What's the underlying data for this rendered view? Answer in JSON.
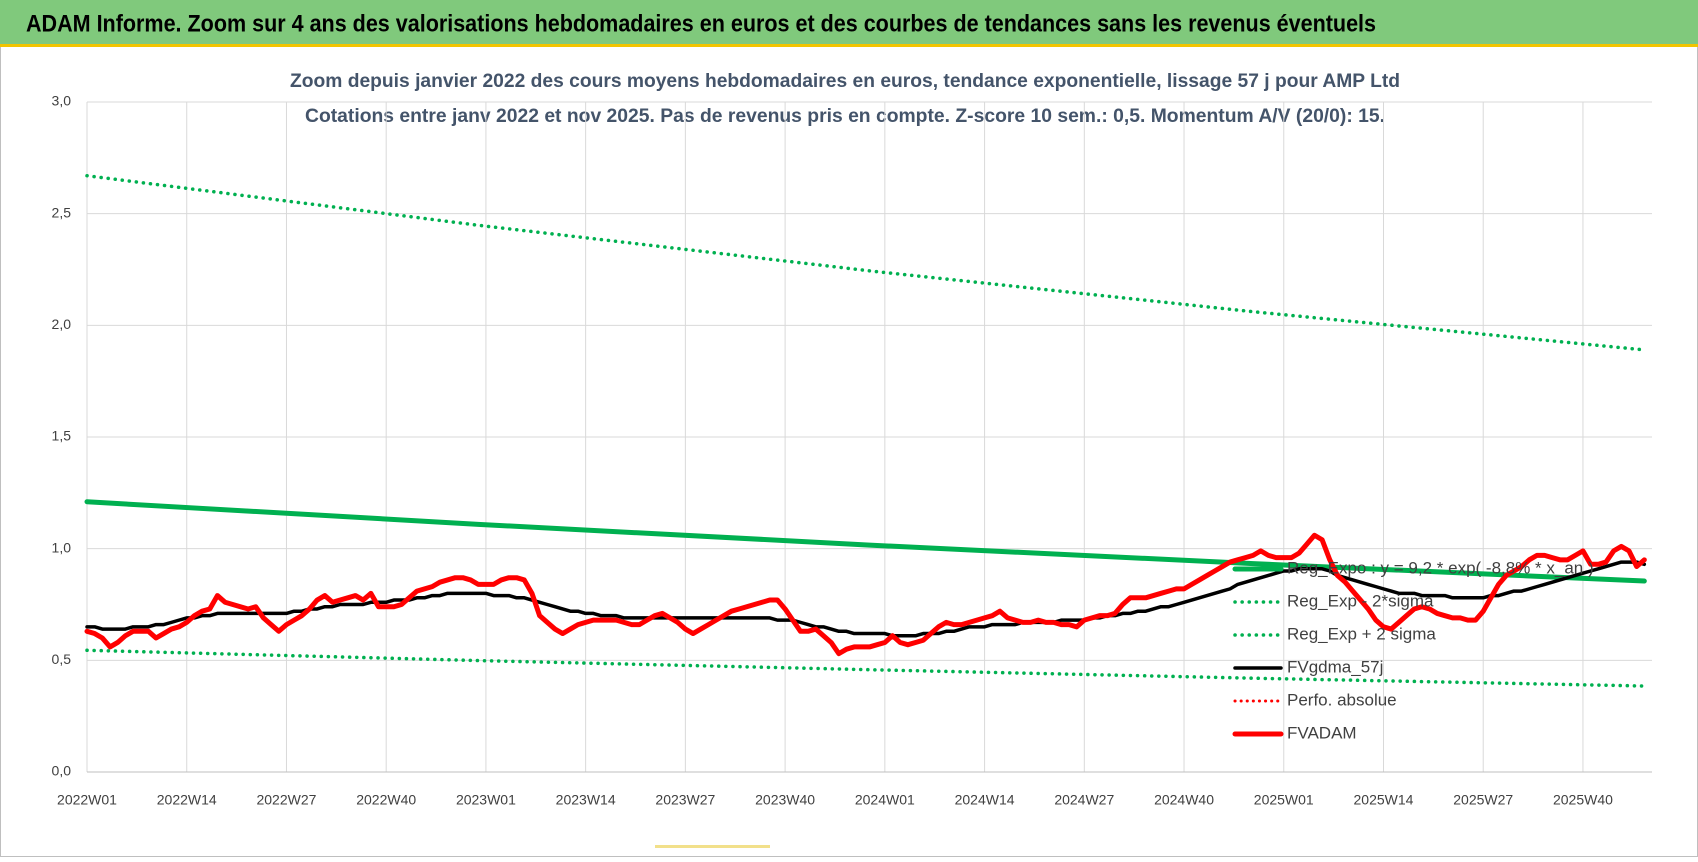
{
  "header": {
    "title": "ADAM Informe. Zoom sur 4 ans des valorisations hebdomadaires en euros et des courbes de tendances sans les revenus éventuels"
  },
  "chart_data": {
    "type": "line",
    "title": "Zoom depuis janvier 2022 des cours moyens hebdomadaires en euros, tendance exponentielle, lissage 57 j pour AMP Ltd",
    "subtitle": "Cotations entre janv 2022 et nov 2025. Pas de revenus pris en compte. Z-score 10 sem.: 0,5. Momentum A/V (20/0): 15.",
    "xlim": [
      0,
      204
    ],
    "xticks": [
      {
        "value": 0,
        "label": "2022W01"
      },
      {
        "value": 13,
        "label": "2022W14"
      },
      {
        "value": 26,
        "label": "2022W27"
      },
      {
        "value": 39,
        "label": "2022W40"
      },
      {
        "value": 52,
        "label": "2023W01"
      },
      {
        "value": 65,
        "label": "2023W14"
      },
      {
        "value": 78,
        "label": "2023W27"
      },
      {
        "value": 91,
        "label": "2023W40"
      },
      {
        "value": 104,
        "label": "2024W01"
      },
      {
        "value": 117,
        "label": "2024W14"
      },
      {
        "value": 130,
        "label": "2024W27"
      },
      {
        "value": 143,
        "label": "2024W40"
      },
      {
        "value": 156,
        "label": "2025W01"
      },
      {
        "value": 169,
        "label": "2025W14"
      },
      {
        "value": 182,
        "label": "2025W27"
      },
      {
        "value": 195,
        "label": "2025W40"
      }
    ],
    "ylim": [
      0,
      3
    ],
    "yticks": [
      {
        "value": 0,
        "label": "0,0"
      },
      {
        "value": 0.5,
        "label": "0,5"
      },
      {
        "value": 1,
        "label": "1,0"
      },
      {
        "value": 1.5,
        "label": "1,5"
      },
      {
        "value": 2,
        "label": "2,0"
      },
      {
        "value": 2.5,
        "label": "2,5"
      },
      {
        "value": 3,
        "label": "3,0"
      }
    ],
    "grid": true,
    "legend": "right",
    "x": [
      0,
      1,
      2,
      3,
      4,
      5,
      6,
      7,
      8,
      9,
      10,
      11,
      12,
      13,
      14,
      15,
      16,
      17,
      18,
      19,
      20,
      21,
      22,
      23,
      24,
      25,
      26,
      27,
      28,
      29,
      30,
      31,
      32,
      33,
      34,
      35,
      36,
      37,
      38,
      39,
      40,
      41,
      42,
      43,
      44,
      45,
      46,
      47,
      48,
      49,
      50,
      51,
      52,
      53,
      54,
      55,
      56,
      57,
      58,
      59,
      60,
      61,
      62,
      63,
      64,
      65,
      66,
      67,
      68,
      69,
      70,
      71,
      72,
      73,
      74,
      75,
      76,
      77,
      78,
      79,
      80,
      81,
      82,
      83,
      84,
      85,
      86,
      87,
      88,
      89,
      90,
      91,
      92,
      93,
      94,
      95,
      96,
      97,
      98,
      99,
      100,
      101,
      102,
      103,
      104,
      105,
      106,
      107,
      108,
      109,
      110,
      111,
      112,
      113,
      114,
      115,
      116,
      117,
      118,
      119,
      120,
      121,
      122,
      123,
      124,
      125,
      126,
      127,
      128,
      129,
      130,
      131,
      132,
      133,
      134,
      135,
      136,
      137,
      138,
      139,
      140,
      141,
      142,
      143,
      144,
      145,
      146,
      147,
      148,
      149,
      150,
      151,
      152,
      153,
      154,
      155,
      156,
      157,
      158,
      159,
      160,
      161,
      162,
      163,
      164,
      165,
      166,
      167,
      168,
      169,
      170,
      171,
      172,
      173,
      174,
      175,
      176,
      177,
      178,
      179,
      180,
      181,
      182,
      183,
      184,
      185,
      186,
      187,
      188,
      189,
      190,
      191,
      192,
      193,
      194,
      195,
      196,
      197,
      198,
      199,
      200,
      201,
      202,
      203
    ],
    "series": [
      {
        "name": "Reg_Expo : y = 9,2 * exp( -8,8% * x_an )",
        "color": "#00b050",
        "style": "solid",
        "width": 5,
        "x": [
          0,
          51,
          102,
          152,
          203
        ],
        "values": [
          1.21,
          1.109,
          1.016,
          0.933,
          0.855
        ]
      },
      {
        "name": "Reg_Exp - 2*sigma",
        "color": "#00b050",
        "style": "dotted",
        "width": 3.5,
        "x": [
          0,
          51,
          102,
          152,
          203
        ],
        "values": [
          0.545,
          0.499,
          0.458,
          0.42,
          0.385
        ]
      },
      {
        "name": "Reg_Exp + 2 sigma",
        "color": "#00b050",
        "style": "dotted",
        "width": 3.5,
        "x": [
          0,
          51,
          102,
          152,
          203
        ],
        "values": [
          2.67,
          2.448,
          2.244,
          2.061,
          1.89
        ]
      },
      {
        "name": "FVgdma_57j",
        "color": "#000000",
        "style": "solid",
        "width": 3.5,
        "values": [
          0.65,
          0.65,
          0.64,
          0.64,
          0.64,
          0.64,
          0.65,
          0.65,
          0.65,
          0.66,
          0.66,
          0.67,
          0.68,
          0.69,
          0.69,
          0.7,
          0.7,
          0.71,
          0.71,
          0.71,
          0.71,
          0.71,
          0.71,
          0.71,
          0.71,
          0.71,
          0.71,
          0.72,
          0.72,
          0.73,
          0.73,
          0.74,
          0.74,
          0.75,
          0.75,
          0.75,
          0.75,
          0.76,
          0.76,
          0.76,
          0.77,
          0.77,
          0.77,
          0.78,
          0.78,
          0.79,
          0.79,
          0.8,
          0.8,
          0.8,
          0.8,
          0.8,
          0.8,
          0.79,
          0.79,
          0.79,
          0.78,
          0.78,
          0.77,
          0.76,
          0.75,
          0.74,
          0.73,
          0.72,
          0.72,
          0.71,
          0.71,
          0.7,
          0.7,
          0.7,
          0.69,
          0.69,
          0.69,
          0.69,
          0.69,
          0.69,
          0.69,
          0.69,
          0.69,
          0.69,
          0.69,
          0.69,
          0.69,
          0.69,
          0.69,
          0.69,
          0.69,
          0.69,
          0.69,
          0.69,
          0.68,
          0.68,
          0.68,
          0.67,
          0.66,
          0.65,
          0.65,
          0.64,
          0.63,
          0.63,
          0.62,
          0.62,
          0.62,
          0.62,
          0.62,
          0.61,
          0.61,
          0.61,
          0.61,
          0.62,
          0.62,
          0.62,
          0.63,
          0.63,
          0.64,
          0.65,
          0.65,
          0.65,
          0.66,
          0.66,
          0.66,
          0.66,
          0.67,
          0.67,
          0.67,
          0.67,
          0.67,
          0.68,
          0.68,
          0.68,
          0.68,
          0.69,
          0.69,
          0.7,
          0.7,
          0.71,
          0.71,
          0.72,
          0.72,
          0.73,
          0.74,
          0.74,
          0.75,
          0.76,
          0.77,
          0.78,
          0.79,
          0.8,
          0.81,
          0.82,
          0.84,
          0.85,
          0.86,
          0.87,
          0.88,
          0.89,
          0.9,
          0.9,
          0.91,
          0.91,
          0.91,
          0.91,
          0.9,
          0.88,
          0.87,
          0.86,
          0.85,
          0.84,
          0.83,
          0.82,
          0.81,
          0.8,
          0.8,
          0.8,
          0.79,
          0.79,
          0.79,
          0.79,
          0.78,
          0.78,
          0.78,
          0.78,
          0.78,
          0.79,
          0.79,
          0.8,
          0.81,
          0.81,
          0.82,
          0.83,
          0.84,
          0.85,
          0.86,
          0.87,
          0.88,
          0.89,
          0.9,
          0.91,
          0.92,
          0.93,
          0.94,
          0.94,
          0.94,
          0.93
        ]
      },
      {
        "name": "Perfo. absolue",
        "color": "#ff0000",
        "style": "dotted",
        "width": 3
      },
      {
        "name": "FVADAM",
        "color": "#ff0000",
        "style": "solid",
        "width": 5,
        "values": [
          0.63,
          0.62,
          0.6,
          0.56,
          0.58,
          0.61,
          0.63,
          0.63,
          0.63,
          0.6,
          0.62,
          0.64,
          0.65,
          0.67,
          0.7,
          0.72,
          0.73,
          0.79,
          0.76,
          0.75,
          0.74,
          0.73,
          0.74,
          0.69,
          0.66,
          0.63,
          0.66,
          0.68,
          0.7,
          0.73,
          0.77,
          0.79,
          0.76,
          0.77,
          0.78,
          0.79,
          0.77,
          0.8,
          0.74,
          0.74,
          0.74,
          0.75,
          0.78,
          0.81,
          0.82,
          0.83,
          0.85,
          0.86,
          0.87,
          0.87,
          0.86,
          0.84,
          0.84,
          0.84,
          0.86,
          0.87,
          0.87,
          0.86,
          0.8,
          0.7,
          0.67,
          0.64,
          0.62,
          0.64,
          0.66,
          0.67,
          0.68,
          0.68,
          0.68,
          0.68,
          0.67,
          0.66,
          0.66,
          0.68,
          0.7,
          0.71,
          0.69,
          0.67,
          0.64,
          0.62,
          0.64,
          0.66,
          0.68,
          0.7,
          0.72,
          0.73,
          0.74,
          0.75,
          0.76,
          0.77,
          0.77,
          0.73,
          0.68,
          0.63,
          0.63,
          0.64,
          0.61,
          0.58,
          0.53,
          0.55,
          0.56,
          0.56,
          0.56,
          0.57,
          0.58,
          0.61,
          0.58,
          0.57,
          0.58,
          0.59,
          0.62,
          0.65,
          0.67,
          0.66,
          0.66,
          0.67,
          0.68,
          0.69,
          0.7,
          0.72,
          0.69,
          0.68,
          0.67,
          0.67,
          0.68,
          0.67,
          0.67,
          0.66,
          0.66,
          0.65,
          0.68,
          0.69,
          0.7,
          0.7,
          0.71,
          0.75,
          0.78,
          0.78,
          0.78,
          0.79,
          0.8,
          0.81,
          0.82,
          0.82,
          0.84,
          0.86,
          0.88,
          0.9,
          0.92,
          0.94,
          0.95,
          0.96,
          0.97,
          0.99,
          0.97,
          0.96,
          0.96,
          0.96,
          0.98,
          1.02,
          1.06,
          1.04,
          0.95,
          0.88,
          0.85,
          0.81,
          0.77,
          0.73,
          0.68,
          0.65,
          0.64,
          0.67,
          0.7,
          0.73,
          0.74,
          0.73,
          0.71,
          0.7,
          0.69,
          0.69,
          0.68,
          0.68,
          0.72,
          0.78,
          0.84,
          0.88,
          0.9,
          0.92,
          0.95,
          0.97,
          0.97,
          0.96,
          0.95,
          0.95,
          0.97,
          0.99,
          0.93,
          0.93,
          0.94,
          0.99,
          1.01,
          0.99,
          0.92,
          0.95
        ]
      }
    ]
  }
}
